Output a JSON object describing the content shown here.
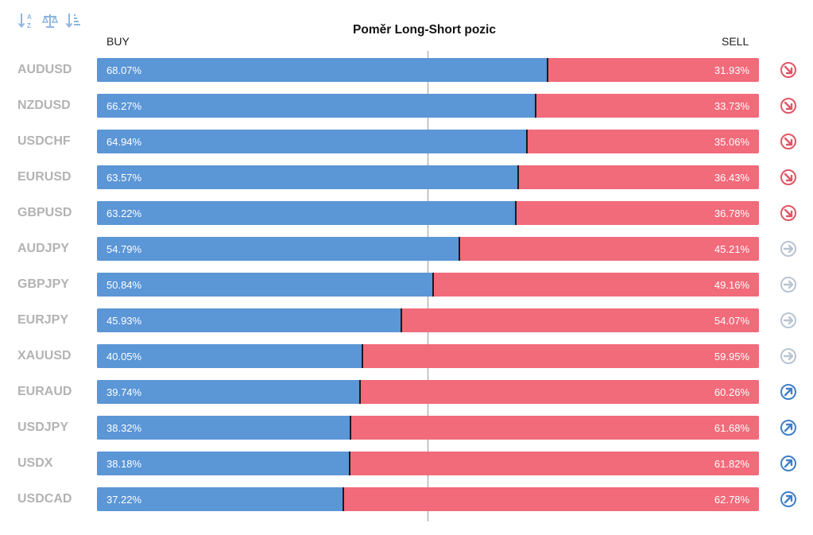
{
  "toolbar": {
    "icons": [
      "sort-alphabetical-icon",
      "balance-scale-icon",
      "sort-descending-icon"
    ]
  },
  "colors": {
    "buy": "#5b96d6",
    "sell": "#f16b7b",
    "down": "#e05565",
    "neutral": "#b9c4d2",
    "up": "#3f7fc6"
  },
  "chart_data": {
    "type": "bar",
    "title": "Poměr Long-Short pozic",
    "buy_label": "BUY",
    "sell_label": "SELL",
    "categories": [
      "AUDUSD",
      "NZDUSD",
      "USDCHF",
      "EURUSD",
      "GBPUSD",
      "AUDJPY",
      "GBPJPY",
      "EURJPY",
      "XAUUSD",
      "EURAUD",
      "USDJPY",
      "USDX",
      "USDCAD"
    ],
    "series": [
      {
        "name": "BUY",
        "values": [
          68.07,
          66.27,
          64.94,
          63.57,
          63.22,
          54.79,
          50.84,
          45.93,
          40.05,
          39.74,
          38.32,
          38.18,
          37.22
        ]
      },
      {
        "name": "SELL",
        "values": [
          31.93,
          33.73,
          35.06,
          36.43,
          36.78,
          45.21,
          49.16,
          54.07,
          59.95,
          60.26,
          61.68,
          61.82,
          62.78
        ]
      }
    ],
    "buy_text": [
      "68.07%",
      "66.27%",
      "64.94%",
      "63.57%",
      "63.22%",
      "54.79%",
      "50.84%",
      "45.93%",
      "40.05%",
      "39.74%",
      "38.32%",
      "38.18%",
      "37.22%"
    ],
    "sell_text": [
      "31.93%",
      "33.73%",
      "35.06%",
      "36.43%",
      "36.78%",
      "45.21%",
      "49.16%",
      "54.07%",
      "59.95%",
      "60.26%",
      "61.68%",
      "61.82%",
      "62.78%"
    ],
    "trend": [
      "down",
      "down",
      "down",
      "down",
      "down",
      "neutral",
      "neutral",
      "neutral",
      "neutral",
      "up",
      "up",
      "up",
      "up"
    ],
    "xlim": [
      0,
      100
    ],
    "midline": 50,
    "stacked": true,
    "orientation": "horizontal",
    "legend": "none",
    "grid": false
  }
}
